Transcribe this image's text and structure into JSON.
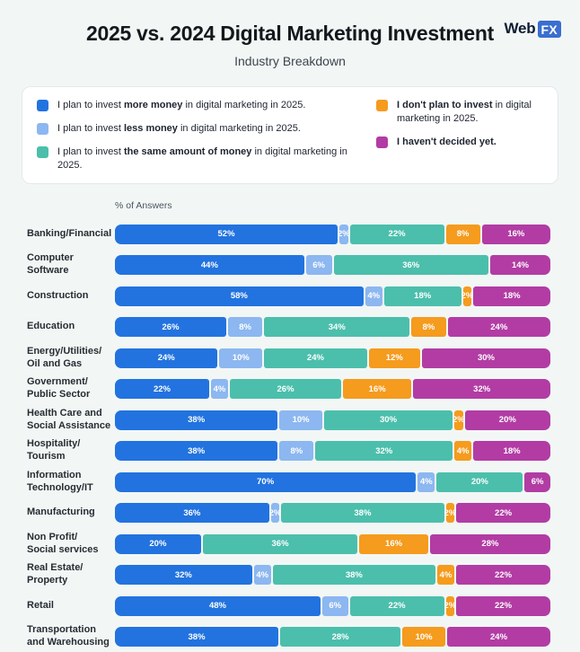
{
  "header": {
    "title": "2025 vs. 2024 Digital Marketing Investment",
    "subtitle": "Industry Breakdown",
    "logo": {
      "text": "Web",
      "badge": "FX"
    }
  },
  "colors": {
    "more": "#2273DF",
    "less": "#8CB7F0",
    "same": "#4BBFAC",
    "none": "#F59B1E",
    "undecided": "#B23CA4",
    "background": "#F2F7F5",
    "card": "#FFFFFF"
  },
  "legend": {
    "items": [
      {
        "key": "more",
        "color": "#2273DF",
        "prefix": "I plan to invest ",
        "bold": "more money",
        "suffix": " in digital marketing in 2025."
      },
      {
        "key": "less",
        "color": "#8CB7F0",
        "prefix": "I plan to invest ",
        "bold": "less money",
        "suffix": " in digital marketing in 2025."
      },
      {
        "key": "same",
        "color": "#4BBFAC",
        "prefix": "I plan to invest ",
        "bold": "the same amount of money",
        "suffix": " in digital marketing in 2025."
      },
      {
        "key": "none",
        "color": "#F59B1E",
        "prefix": "",
        "bold": "I don't plan to invest",
        "suffix": " in digital marketing in 2025."
      },
      {
        "key": "undecided",
        "color": "#B23CA4",
        "prefix": "",
        "bold": "I haven't decided yet.",
        "suffix": ""
      }
    ]
  },
  "chart_data": {
    "type": "bar",
    "orientation": "horizontal-stacked",
    "axis_label": "% of Answers",
    "unit": "%",
    "xlim": [
      0,
      100
    ],
    "grid": false,
    "legend_position": "top",
    "categories": [
      "Banking/Financial",
      "Computer\nSoftware",
      "Construction",
      "Education",
      "Energy/Utilities/\nOil and Gas",
      "Government/\nPublic Sector",
      "Health Care and\nSocial Assistance",
      "Hospitality/\nTourism",
      "Information\nTechnology/IT",
      "Manufacturing",
      "Non Profit/\nSocial services",
      "Real Estate/\nProperty",
      "Retail",
      "Transportation\nand Warehousing"
    ],
    "series": [
      {
        "name": "I plan to invest more money in digital marketing in 2025.",
        "color": "#2273DF",
        "values": [
          52,
          44,
          58,
          26,
          24,
          22,
          38,
          38,
          70,
          36,
          20,
          32,
          48,
          38
        ]
      },
      {
        "name": "I plan to invest less money in digital marketing in 2025.",
        "color": "#8CB7F0",
        "values": [
          2,
          6,
          4,
          8,
          10,
          4,
          10,
          8,
          4,
          2,
          0,
          4,
          6,
          0
        ]
      },
      {
        "name": "I plan to invest the same amount of money in digital marketing in 2025.",
        "color": "#4BBFAC",
        "values": [
          22,
          36,
          18,
          34,
          24,
          26,
          30,
          32,
          20,
          38,
          36,
          38,
          22,
          28
        ]
      },
      {
        "name": "I don't plan to invest in digital marketing in 2025.",
        "color": "#F59B1E",
        "values": [
          8,
          0,
          2,
          8,
          12,
          16,
          2,
          4,
          0,
          2,
          16,
          4,
          2,
          10
        ]
      },
      {
        "name": "I haven't decided yet.",
        "color": "#B23CA4",
        "values": [
          16,
          14,
          18,
          24,
          30,
          32,
          20,
          18,
          6,
          22,
          28,
          22,
          22,
          24
        ]
      }
    ]
  }
}
